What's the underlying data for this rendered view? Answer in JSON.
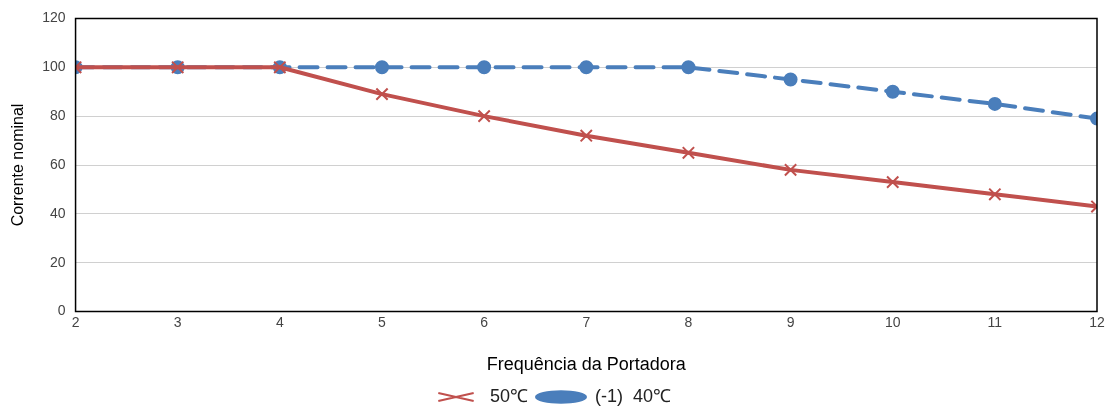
{
  "chart_data": {
    "type": "line",
    "xlabel": "Frequência da Portadora",
    "ylabel": "Corrente nominal",
    "x": [
      2,
      3,
      4,
      5,
      6,
      7,
      8,
      9,
      10,
      11,
      12
    ],
    "series": [
      {
        "name": "(-1)  40℃",
        "color": "#4a7ebb",
        "values": [
          100,
          100,
          100,
          100,
          100,
          100,
          100,
          95,
          90,
          85,
          79
        ],
        "marker": "circle",
        "line_style": "dashed"
      },
      {
        "name": "50℃",
        "color": "#c0504d",
        "values": [
          100,
          100,
          100,
          89,
          80,
          72,
          65,
          58,
          53,
          48,
          43
        ],
        "marker": "cross",
        "line_style": "solid"
      }
    ],
    "xlim": [
      2,
      12
    ],
    "xticks": [
      2,
      3,
      4,
      5,
      6,
      7,
      8,
      9,
      10,
      11,
      12
    ],
    "ylim": [
      0,
      120
    ],
    "yticks": [
      0,
      20,
      40,
      60,
      80,
      100,
      120
    ],
    "grid": "y",
    "legend": "bottom"
  }
}
